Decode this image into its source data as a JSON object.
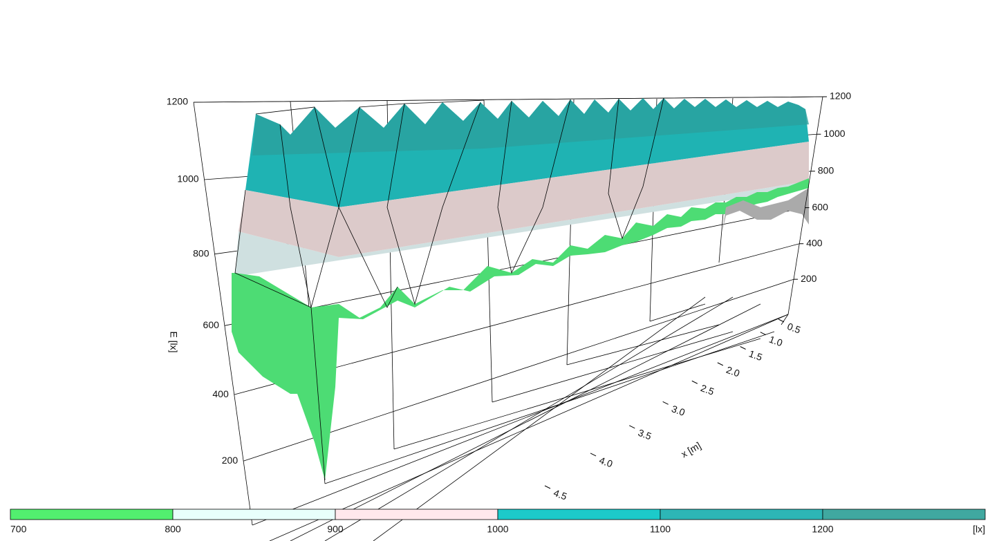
{
  "chart_data": {
    "type": "surface3d",
    "z_label": "E [lx]",
    "x_label": "x [m]",
    "zlim": [
      0,
      1200
    ],
    "zticks_left": [
      200,
      400,
      600,
      800,
      1000,
      1200
    ],
    "zticks_right": [
      200,
      400,
      600,
      800,
      1000,
      1200
    ],
    "xlim": [
      0.5,
      4.5
    ],
    "xticks": [
      0.5,
      {
        "value": 1.0,
        "label": "1.0"
      },
      1.5,
      {
        "value": 2.0,
        "label": "2.0"
      },
      2.5,
      {
        "value": 3.0,
        "label": "3.0"
      },
      3.5,
      {
        "value": 4.0,
        "label": "4.0"
      },
      4.5
    ],
    "color_scale": {
      "ticks": [
        700,
        800,
        900,
        1000,
        1100,
        1200
      ],
      "colors": [
        "#52ef6f",
        "#e8fffb",
        "#ffe8ec",
        "#1ccaca",
        "#2db6b6",
        "#40a8a0"
      ],
      "unit": "[lx]"
    }
  }
}
